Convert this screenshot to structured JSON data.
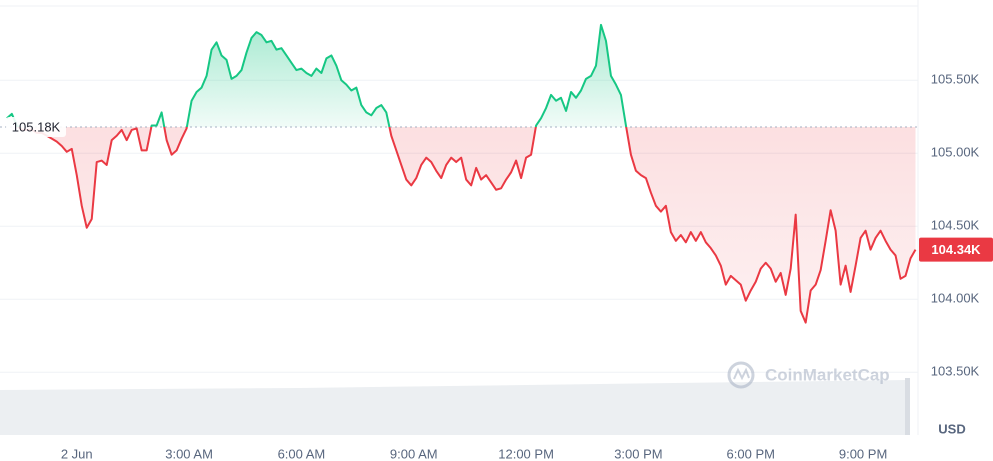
{
  "chart_data": {
    "type": "line",
    "x": [
      -112,
      -104,
      -96,
      -88,
      -80,
      -72,
      -64,
      -56,
      -48,
      -40,
      -32,
      -24,
      -16,
      -8,
      0,
      8,
      16,
      24,
      32,
      40,
      48,
      56,
      64,
      72,
      80,
      88,
      96,
      104,
      112,
      120,
      128,
      136,
      144,
      152,
      160,
      168,
      176,
      184,
      192,
      200,
      208,
      216,
      224,
      232,
      240,
      248,
      256,
      264,
      272,
      280,
      288,
      296,
      304,
      312,
      320,
      328,
      336,
      344,
      352,
      360,
      368,
      376,
      384,
      392,
      400,
      408,
      416,
      424,
      432,
      440,
      448,
      456,
      464,
      472,
      480,
      488,
      496,
      504,
      512,
      520,
      528,
      536,
      544,
      552,
      560,
      568,
      576,
      584,
      592,
      600,
      608,
      616,
      624,
      632,
      640,
      648,
      656,
      664,
      672,
      680,
      688,
      696,
      704,
      712,
      720,
      728,
      736,
      744,
      752,
      760,
      768,
      776,
      784,
      792,
      800,
      808,
      816,
      824,
      832,
      840,
      848,
      856,
      864,
      872,
      880,
      888,
      896,
      904,
      912,
      920,
      928,
      936,
      944,
      952,
      960,
      968,
      976,
      984,
      992,
      1000,
      1008,
      1016,
      1024,
      1032,
      1040,
      1048,
      1056,
      1064,
      1072,
      1080,
      1088,
      1096,
      1104,
      1112,
      1120,
      1128,
      1136,
      1144,
      1152,
      1160,
      1168,
      1176,
      1184,
      1192,
      1200,
      1208,
      1216,
      1224,
      1232,
      1240,
      1248,
      1256,
      1264,
      1272,
      1280,
      1288,
      1296,
      1304,
      1312,
      1320,
      1328,
      1336,
      1344
    ],
    "values": [
      105.24,
      105.27,
      105.19,
      105.16,
      105.16,
      105.16,
      105.14,
      105.14,
      105.12,
      105.1,
      105.08,
      105.05,
      105.01,
      105.03,
      104.85,
      104.64,
      104.49,
      104.55,
      104.94,
      104.95,
      104.92,
      105.09,
      105.12,
      105.16,
      105.09,
      105.16,
      105.17,
      105.02,
      105.02,
      105.19,
      105.19,
      105.28,
      105.09,
      104.99,
      105.02,
      105.1,
      105.17,
      105.36,
      105.42,
      105.45,
      105.53,
      105.71,
      105.76,
      105.67,
      105.64,
      105.51,
      105.53,
      105.57,
      105.69,
      105.79,
      105.83,
      105.81,
      105.76,
      105.77,
      105.71,
      105.72,
      105.67,
      105.62,
      105.57,
      105.58,
      105.55,
      105.53,
      105.58,
      105.55,
      105.65,
      105.67,
      105.6,
      105.5,
      105.47,
      105.43,
      105.45,
      105.33,
      105.28,
      105.26,
      105.31,
      105.33,
      105.28,
      105.12,
      105.02,
      104.92,
      104.82,
      104.78,
      104.83,
      104.92,
      104.97,
      104.94,
      104.88,
      104.83,
      104.92,
      104.97,
      104.94,
      104.97,
      104.82,
      104.78,
      104.9,
      104.82,
      104.85,
      104.8,
      104.75,
      104.76,
      104.82,
      104.87,
      104.95,
      104.83,
      104.97,
      104.99,
      105.19,
      105.24,
      105.31,
      105.4,
      105.36,
      105.38,
      105.29,
      105.42,
      105.38,
      105.43,
      105.51,
      105.53,
      105.6,
      105.88,
      105.77,
      105.53,
      105.47,
      105.4,
      105.19,
      104.99,
      104.88,
      104.85,
      104.83,
      104.73,
      104.64,
      104.6,
      104.64,
      104.46,
      104.4,
      104.44,
      104.39,
      104.46,
      104.4,
      104.46,
      104.39,
      104.35,
      104.3,
      104.23,
      104.1,
      104.16,
      104.13,
      104.1,
      103.99,
      104.06,
      104.12,
      104.21,
      104.25,
      104.21,
      104.12,
      104.18,
      104.03,
      104.21,
      104.58,
      103.92,
      103.84,
      104.06,
      104.1,
      104.2,
      104.4,
      104.61,
      104.47,
      104.1,
      104.23,
      104.05,
      104.23,
      104.42,
      104.47,
      104.34,
      104.42,
      104.47,
      104.4,
      104.34,
      104.3,
      104.14,
      104.16,
      104.28,
      104.34
    ],
    "up_color": "#16c784",
    "down_color": "#ea3943",
    "baseline": {
      "value": 105.18,
      "label": "105.18K"
    },
    "last_value": {
      "value": 104.34,
      "label": "104.34K"
    },
    "xlim": [
      -123,
      1348
    ],
    "xticks": [
      {
        "value": 0,
        "label": "2 Jun"
      },
      {
        "value": 180,
        "label": "3:00 AM"
      },
      {
        "value": 360,
        "label": "6:00 AM"
      },
      {
        "value": 540,
        "label": "9:00 AM"
      },
      {
        "value": 720,
        "label": "12:00 PM"
      },
      {
        "value": 900,
        "label": "3:00 PM"
      },
      {
        "value": 1080,
        "label": "6:00 PM"
      },
      {
        "value": 1260,
        "label": "9:00 PM"
      }
    ],
    "ylim": [
      103.07,
      106.05
    ],
    "yticks": [
      {
        "value": 103.5,
        "label": "103.50K"
      },
      {
        "value": 104,
        "label": "104.00K"
      },
      {
        "value": 104.5,
        "label": "104.50K"
      },
      {
        "value": 105,
        "label": "105.00K"
      },
      {
        "value": 105.5,
        "label": "105.50K"
      }
    ],
    "grid": true,
    "currency": "USD",
    "watermark": "CoinMarketCap"
  }
}
